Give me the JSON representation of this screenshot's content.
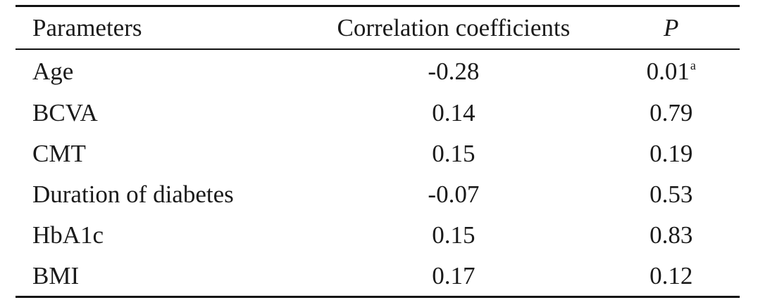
{
  "table": {
    "headers": {
      "parameter": "Parameters",
      "correlation": "Correlation coefficients",
      "p": "P"
    },
    "rows": [
      {
        "parameter": "Age",
        "correlation": "-0.28",
        "p": "0.01",
        "p_sup": "a"
      },
      {
        "parameter": "BCVA",
        "correlation": "0.14",
        "p": "0.79"
      },
      {
        "parameter": "CMT",
        "correlation": "0.15",
        "p": "0.19"
      },
      {
        "parameter": "Duration of diabetes",
        "correlation": "-0.07",
        "p": "0.53"
      },
      {
        "parameter": "HbA1c",
        "correlation": "0.15",
        "p": "0.83"
      },
      {
        "parameter": "BMI",
        "correlation": "0.17",
        "p": "0.12"
      }
    ]
  }
}
